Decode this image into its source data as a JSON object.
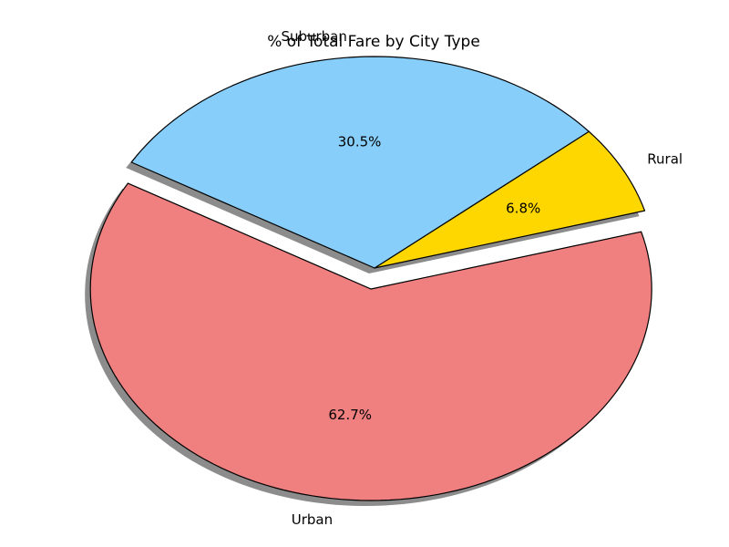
{
  "chart_data": {
    "type": "pie",
    "title": "% of Total Fare by City Type",
    "categories": [
      "Urban",
      "Rural",
      "Suburban"
    ],
    "values": [
      62.7,
      6.8,
      30.5
    ],
    "value_labels": [
      "62.7%",
      "6.8%",
      "30.5%"
    ],
    "colors": [
      "#f08080",
      "#ffd700",
      "#87cefa"
    ],
    "exploded": [
      "Urban"
    ],
    "shadow": true,
    "edge_color": "#000000"
  }
}
